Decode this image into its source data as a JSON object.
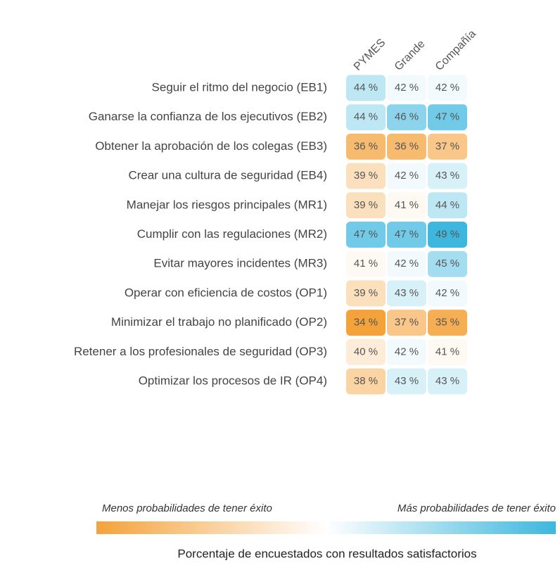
{
  "chart_data": {
    "type": "heatmap",
    "columns": [
      "PYMES",
      "Grande",
      "Compañía"
    ],
    "rows": [
      "Seguir el ritmo del negocio (EB1)",
      "Ganarse la confianza de los ejecutivos (EB2)",
      "Obtener la aprobación de los colegas (EB3)",
      "Crear una cultura de seguridad (EB4)",
      "Manejar los riesgos principales (MR1)",
      "Cumplir con las regulaciones (MR2)",
      "Evitar mayores incidentes (MR3)",
      "Operar con eficiencia de costos (OP1)",
      "Minimizar el trabajo no planificado (OP2)",
      "Retener a los profesionales de seguridad (OP3)",
      "Optimizar los procesos de IR (OP4)"
    ],
    "values": [
      [
        44,
        42,
        42
      ],
      [
        44,
        46,
        47
      ],
      [
        36,
        36,
        37
      ],
      [
        39,
        42,
        43
      ],
      [
        39,
        41,
        44
      ],
      [
        47,
        47,
        49
      ],
      [
        41,
        42,
        45
      ],
      [
        39,
        43,
        42
      ],
      [
        34,
        37,
        35
      ],
      [
        40,
        42,
        41
      ],
      [
        38,
        43,
        43
      ]
    ],
    "value_labels": [
      [
        "44 %",
        "42 %",
        "42 %"
      ],
      [
        "44 %",
        "46 %",
        "47 %"
      ],
      [
        "36 %",
        "36 %",
        "37 %"
      ],
      [
        "39 %",
        "42 %",
        "43 %"
      ],
      [
        "39 %",
        "41 %",
        "44 %"
      ],
      [
        "47 %",
        "47 %",
        "49 %"
      ],
      [
        "41 %",
        "42 %",
        "45 %"
      ],
      [
        "39 %",
        "43 %",
        "42 %"
      ],
      [
        "34 %",
        "37 %",
        "35 %"
      ],
      [
        "40 %",
        "42 %",
        "41 %"
      ],
      [
        "38 %",
        "43 %",
        "43 %"
      ]
    ],
    "zlim": [
      34,
      49
    ],
    "colors": [
      "#f4a23a",
      "#ffffff",
      "#3db7de"
    ],
    "legend_low": "Menos probabilidades de tener éxito",
    "legend_high": "Más probabilidades de tener éxito",
    "xlabel": "Porcentaje de encuestados con resultados satisfactorios"
  }
}
